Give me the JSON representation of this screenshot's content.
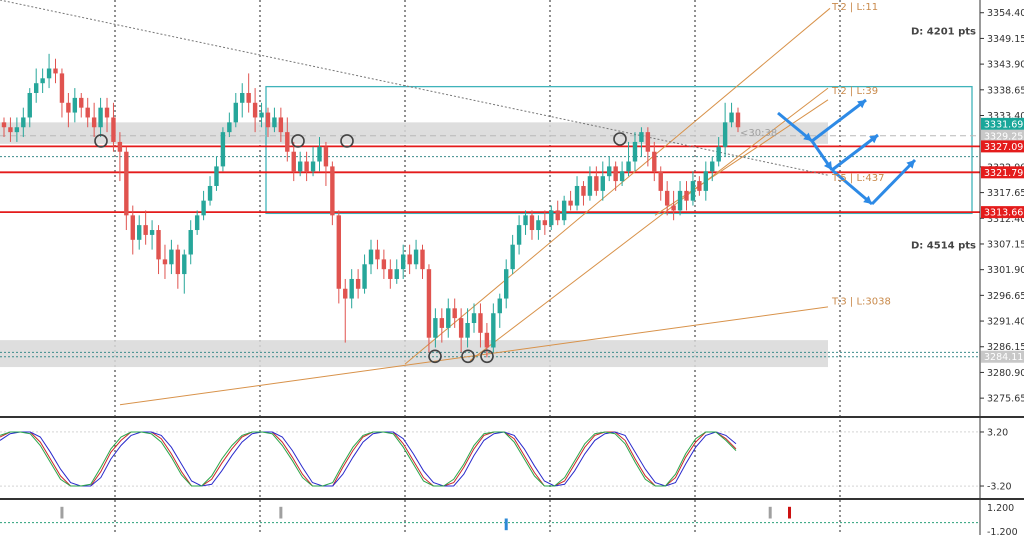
{
  "chart_data": [
    {
      "type": "candlestick",
      "panel": "price",
      "ylim": [
        3272.0,
        3357.0
      ],
      "y_ticks": [
        "3354.40",
        "3349.15",
        "3343.90",
        "3338.65",
        "3333.40",
        "3322.90",
        "3317.65",
        "3312.40",
        "3307.15",
        "3301.90",
        "3296.65",
        "3291.40",
        "3286.15",
        "3280.90",
        "3275.65"
      ],
      "price_labels": [
        {
          "text": "3331.69",
          "value": 3331.69,
          "bg": "#19a79a",
          "fg": "#ffffff"
        },
        {
          "text": "3329.25",
          "value": 3329.25,
          "bg": "#c8c8c8",
          "fg": "#ffffff"
        },
        {
          "text": "3327.09",
          "value": 3327.09,
          "bg": "#e41b1b",
          "fg": "#ffffff"
        },
        {
          "text": "3321.79",
          "value": 3321.79,
          "bg": "#e41b1b",
          "fg": "#ffffff"
        },
        {
          "text": "3313.66",
          "value": 3313.66,
          "bg": "#e41b1b",
          "fg": "#ffffff"
        },
        {
          "text": "3284.11",
          "value": 3284.11,
          "bg": "#c8c8c8",
          "fg": "#ffffff"
        }
      ],
      "horizontal_lines": [
        {
          "value": 3327.09,
          "color": "#e41b1b",
          "style": "solid"
        },
        {
          "value": 3321.79,
          "color": "#e41b1b",
          "style": "solid"
        },
        {
          "value": 3313.66,
          "color": "#e41b1b",
          "style": "solid"
        },
        {
          "value": 3329.25,
          "color": "#b8b8b8",
          "style": "dashed"
        },
        {
          "value": 3325.0,
          "color": "#3c8c8c",
          "style": "dotted"
        },
        {
          "value": 3285.0,
          "color": "#3c8c8c",
          "style": "dotted"
        },
        {
          "value": 3284.11,
          "color": "#3c8c8c",
          "style": "dotted"
        }
      ],
      "zones": [
        {
          "from": 3327.6,
          "to": 3332.0,
          "color": "#d8d8d8"
        },
        {
          "from": 3282.0,
          "to": 3287.5,
          "color": "#d8d8d8"
        }
      ],
      "box": {
        "from": 3313.4,
        "to": 3339.3,
        "color": "#3fb3ba"
      },
      "annotations": [
        {
          "text": "D: 4201 pts",
          "value": 3350.8,
          "color": "#444444"
        },
        {
          "text": "D: 4514 pts",
          "value": 3307.0,
          "color": "#444444"
        },
        {
          "text": "T:2 | L:11",
          "value": 3355.8,
          "color": "#c98a4b"
        },
        {
          "text": "T:2 | L:39",
          "value": 3338.6,
          "color": "#c98a4b"
        },
        {
          "text": "T:5 | L:437",
          "value": 3320.8,
          "color": "#c98a4b"
        },
        {
          "text": "T:3 | L:3038",
          "value": 3295.6,
          "color": "#c98a4b"
        },
        {
          "text": "<30:38",
          "value": 3330.0,
          "color": "#a0a0a0"
        }
      ],
      "candles": [
        [
          3332,
          3331,
          3333,
          3329
        ],
        [
          3331,
          3330,
          3333,
          3328
        ],
        [
          3330,
          3331,
          3333,
          3328
        ],
        [
          3331,
          3333,
          3335,
          3329
        ],
        [
          3333,
          3338,
          3339,
          3331
        ],
        [
          3338,
          3340,
          3343,
          3336
        ],
        [
          3340,
          3341,
          3343,
          3338
        ],
        [
          3341,
          3343,
          3346,
          3339
        ],
        [
          3343,
          3342,
          3345,
          3340
        ],
        [
          3342,
          3336,
          3343,
          3333
        ],
        [
          3336,
          3334,
          3338,
          3331
        ],
        [
          3334,
          3337,
          3339,
          3332
        ],
        [
          3337,
          3335,
          3338,
          3333
        ],
        [
          3335,
          3333,
          3337,
          3331
        ],
        [
          3333,
          3331,
          3336,
          3329
        ],
        [
          3331,
          3335,
          3337,
          3329
        ],
        [
          3335,
          3333,
          3337,
          3330
        ],
        [
          3333,
          3328,
          3336,
          3326
        ],
        [
          3328,
          3326,
          3330,
          3320
        ],
        [
          3326,
          3313,
          3327,
          3310
        ],
        [
          3313,
          3308,
          3315,
          3305
        ],
        [
          3308,
          3311,
          3313,
          3306
        ],
        [
          3311,
          3309,
          3314,
          3307
        ],
        [
          3309,
          3310,
          3312,
          3306
        ],
        [
          3310,
          3304,
          3311,
          3301
        ],
        [
          3304,
          3303,
          3307,
          3300
        ],
        [
          3303,
          3306,
          3308,
          3301
        ],
        [
          3306,
          3301,
          3307,
          3298
        ],
        [
          3301,
          3305,
          3306,
          3297
        ],
        [
          3305,
          3310,
          3312,
          3303
        ],
        [
          3310,
          3313,
          3314,
          3309
        ],
        [
          3313,
          3316,
          3318,
          3312
        ],
        [
          3316,
          3319,
          3321,
          3315
        ],
        [
          3319,
          3323,
          3325,
          3318
        ],
        [
          3323,
          3330,
          3331,
          3322
        ],
        [
          3330,
          3332,
          3334,
          3329
        ],
        [
          3332,
          3336,
          3338,
          3331
        ],
        [
          3336,
          3338,
          3340,
          3333
        ],
        [
          3338,
          3336,
          3342,
          3334
        ],
        [
          3336,
          3333,
          3339,
          3330
        ],
        [
          3333,
          3334,
          3336,
          3331
        ],
        [
          3334,
          3331,
          3335,
          3329
        ],
        [
          3331,
          3333,
          3335,
          3330
        ],
        [
          3333,
          3330,
          3335,
          3328
        ],
        [
          3330,
          3326,
          3333,
          3324
        ],
        [
          3326,
          3322,
          3328,
          3320
        ],
        [
          3322,
          3324,
          3326,
          3321
        ],
        [
          3324,
          3322,
          3326,
          3320
        ],
        [
          3322,
          3324,
          3327,
          3321
        ],
        [
          3324,
          3327,
          3329,
          3322
        ],
        [
          3327,
          3323,
          3328,
          3319
        ],
        [
          3323,
          3313,
          3324,
          3311
        ],
        [
          3313,
          3298,
          3314,
          3295
        ],
        [
          3298,
          3296,
          3300,
          3287
        ],
        [
          3296,
          3300,
          3302,
          3294
        ],
        [
          3300,
          3298,
          3302,
          3296
        ],
        [
          3298,
          3303,
          3305,
          3297
        ],
        [
          3303,
          3306,
          3308,
          3301
        ],
        [
          3306,
          3304,
          3308,
          3302
        ],
        [
          3304,
          3302,
          3306,
          3300
        ],
        [
          3302,
          3300,
          3304,
          3298
        ],
        [
          3300,
          3302,
          3304,
          3299
        ],
        [
          3302,
          3305,
          3307,
          3300
        ],
        [
          3305,
          3303,
          3307,
          3301
        ],
        [
          3303,
          3306,
          3308,
          3302
        ],
        [
          3306,
          3302,
          3307,
          3300
        ],
        [
          3302,
          3288,
          3303,
          3285
        ],
        [
          3288,
          3292,
          3294,
          3286
        ],
        [
          3292,
          3290,
          3294,
          3287
        ],
        [
          3290,
          3294,
          3296,
          3288
        ],
        [
          3294,
          3292,
          3296,
          3290
        ],
        [
          3292,
          3288,
          3294,
          3285
        ],
        [
          3288,
          3291,
          3294,
          3286
        ],
        [
          3291,
          3293,
          3295,
          3289
        ],
        [
          3293,
          3289,
          3295,
          3286
        ],
        [
          3289,
          3286,
          3291,
          3284
        ],
        [
          3286,
          3293,
          3295,
          3285
        ],
        [
          3293,
          3296,
          3297,
          3290
        ],
        [
          3296,
          3302,
          3304,
          3294
        ],
        [
          3302,
          3307,
          3309,
          3301
        ],
        [
          3307,
          3311,
          3313,
          3305
        ],
        [
          3311,
          3313,
          3314,
          3309
        ],
        [
          3313,
          3310,
          3314,
          3308
        ],
        [
          3310,
          3312,
          3313,
          3308
        ],
        [
          3312,
          3311,
          3314,
          3309
        ],
        [
          3311,
          3314,
          3315,
          3310
        ],
        [
          3314,
          3312,
          3316,
          3311
        ],
        [
          3312,
          3316,
          3317,
          3311
        ],
        [
          3316,
          3315,
          3318,
          3314
        ],
        [
          3315,
          3319,
          3321,
          3314
        ],
        [
          3319,
          3317,
          3320,
          3315
        ],
        [
          3317,
          3321,
          3323,
          3316
        ],
        [
          3321,
          3318,
          3323,
          3317
        ],
        [
          3318,
          3321,
          3324,
          3316
        ],
        [
          3321,
          3323,
          3325,
          3320
        ],
        [
          3323,
          3320,
          3324,
          3318
        ],
        [
          3320,
          3322,
          3324,
          3319
        ],
        [
          3322,
          3324,
          3328,
          3321
        ],
        [
          3324,
          3328,
          3330,
          3322
        ],
        [
          3328,
          3330,
          3331,
          3325
        ],
        [
          3330,
          3326,
          3331,
          3323
        ],
        [
          3326,
          3322,
          3328,
          3320
        ],
        [
          3322,
          3318,
          3323,
          3316
        ],
        [
          3318,
          3315,
          3320,
          3313
        ],
        [
          3315,
          3314,
          3318,
          3312
        ],
        [
          3314,
          3318,
          3320,
          3313
        ],
        [
          3318,
          3316,
          3320,
          3314
        ],
        [
          3316,
          3320,
          3322,
          3315
        ],
        [
          3320,
          3318,
          3321,
          3317
        ],
        [
          3318,
          3322,
          3324,
          3316
        ],
        [
          3322,
          3324,
          3325,
          3320
        ],
        [
          3324,
          3327,
          3329,
          3323
        ],
        [
          3327,
          3332,
          3336,
          3325
        ],
        [
          3332,
          3334,
          3336,
          3331
        ],
        [
          3334,
          3331,
          3335,
          3330
        ]
      ]
    },
    {
      "type": "line",
      "panel": "oscillator",
      "ylim": [
        -4.5,
        4.5
      ],
      "y_ticks": [
        "3.20",
        "-3.20"
      ],
      "series": [
        {
          "color": "#cc2a2a",
          "values": [
            2.6,
            3.2,
            3.2,
            3.2,
            2.0,
            0.0,
            -2.0,
            -3.2,
            -3.2,
            -3.2,
            -1.5,
            0.8,
            2.2,
            3.2,
            3.2,
            3.2,
            2.4,
            0.6,
            -1.5,
            -3.2,
            -3.2,
            -2.4,
            -0.5,
            1.2,
            2.6,
            3.2,
            3.2,
            3.2,
            2.0,
            0.2,
            -1.8,
            -3.2,
            -3.2,
            -3.2,
            -1.0,
            1.0,
            2.6,
            3.2,
            3.2,
            3.2,
            1.8,
            -0.2,
            -2.2,
            -3.2,
            -3.2,
            -2.8,
            -1.0,
            1.2,
            2.8,
            3.2,
            3.2,
            2.4,
            0.4,
            -1.6,
            -3.2,
            -3.2,
            -2.6,
            -0.6,
            1.4,
            2.8,
            3.2,
            3.2,
            2.2,
            0.0,
            -2.0,
            -3.2,
            -3.2,
            -2.2,
            0.2,
            2.0,
            3.2,
            3.2,
            2.4,
            1.2
          ]
        },
        {
          "color": "#2a2acc",
          "values": [
            2.2,
            3.0,
            3.2,
            3.2,
            2.6,
            0.8,
            -1.2,
            -2.8,
            -3.2,
            -3.2,
            -2.2,
            0.0,
            1.6,
            2.8,
            3.2,
            3.2,
            2.8,
            1.4,
            -0.6,
            -2.6,
            -3.2,
            -3.0,
            -1.4,
            0.4,
            2.0,
            3.0,
            3.2,
            3.2,
            2.6,
            1.0,
            -1.0,
            -2.8,
            -3.2,
            -3.2,
            -1.8,
            0.2,
            2.0,
            3.0,
            3.2,
            3.2,
            2.4,
            0.6,
            -1.4,
            -2.8,
            -3.2,
            -3.2,
            -1.8,
            0.4,
            2.2,
            3.0,
            3.2,
            2.8,
            1.2,
            -0.8,
            -2.6,
            -3.2,
            -3.0,
            -1.4,
            0.6,
            2.2,
            3.0,
            3.2,
            2.8,
            0.8,
            -1.2,
            -2.8,
            -3.2,
            -2.8,
            -0.6,
            1.4,
            2.8,
            3.2,
            2.8,
            1.8
          ]
        },
        {
          "color": "#2aa64a",
          "values": [
            2.8,
            3.2,
            3.2,
            3.0,
            1.6,
            -0.4,
            -2.4,
            -3.2,
            -3.2,
            -3.0,
            -1.0,
            1.2,
            2.6,
            3.2,
            3.2,
            3.0,
            2.0,
            0.2,
            -1.9,
            -3.2,
            -3.2,
            -2.0,
            0.0,
            1.6,
            2.8,
            3.2,
            3.2,
            3.0,
            1.6,
            -0.2,
            -2.2,
            -3.2,
            -3.2,
            -2.8,
            -0.6,
            1.4,
            2.8,
            3.2,
            3.2,
            3.0,
            1.4,
            -0.6,
            -2.6,
            -3.2,
            -3.2,
            -2.4,
            -0.6,
            1.6,
            3.0,
            3.2,
            3.2,
            2.0,
            0.0,
            -2.0,
            -3.2,
            -3.2,
            -2.2,
            -0.2,
            1.8,
            3.0,
            3.2,
            3.0,
            1.8,
            -0.4,
            -2.4,
            -3.2,
            -3.2,
            -1.8,
            0.6,
            2.4,
            3.2,
            3.2,
            2.2,
            1.0
          ]
        }
      ]
    },
    {
      "type": "bar",
      "panel": "histogram",
      "ylim": [
        -1.2,
        1.2
      ],
      "y_ticks": [
        "1.200",
        "-1.200"
      ],
      "bars": [
        {
          "index": 9,
          "value": 0.85,
          "color": "#a0a0a0"
        },
        {
          "index": 43,
          "value": 0.85,
          "color": "#a0a0a0"
        },
        {
          "index": 78,
          "value": -0.85,
          "color": "#2d8ad6"
        },
        {
          "index": 119,
          "value": 0.85,
          "color": "#a0a0a0"
        },
        {
          "index": 122,
          "value": 0.85,
          "color": "#cc1111"
        }
      ]
    }
  ]
}
